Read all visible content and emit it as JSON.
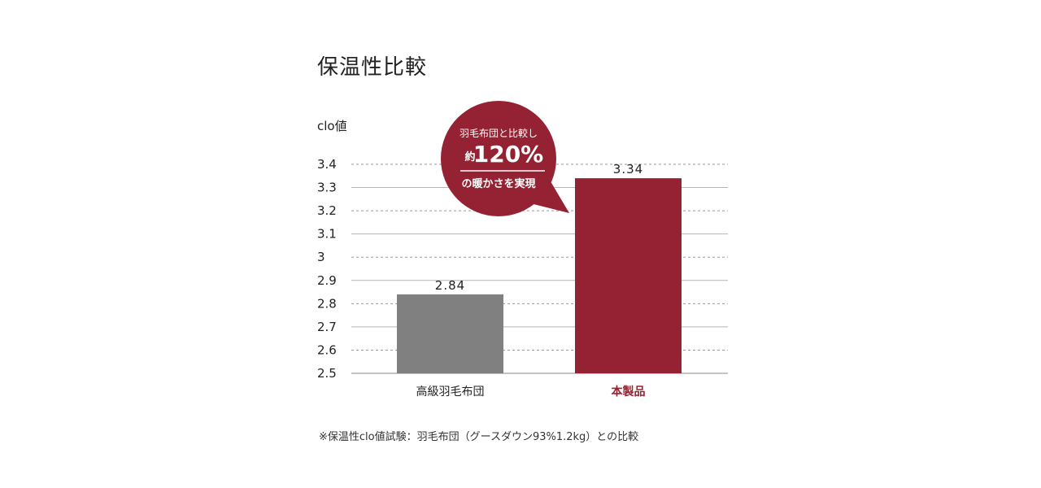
{
  "colors": {
    "accent": "#952232",
    "gray_bar": "#808080",
    "text": "#222222",
    "grid_dashed": "#9a9a9a",
    "grid_solid": "#b5b5b5"
  },
  "chart_data": {
    "type": "bar",
    "title": "保温性比較",
    "ylabel": "clo値",
    "xlabel": "",
    "ylim": [
      2.5,
      3.4
    ],
    "yticks": [
      {
        "value": 2.5,
        "label": "2.5"
      },
      {
        "value": 2.6,
        "label": "2.6"
      },
      {
        "value": 2.7,
        "label": "2.7"
      },
      {
        "value": 2.8,
        "label": "2.8"
      },
      {
        "value": 2.9,
        "label": "2.9"
      },
      {
        "value": 3.0,
        "label": "3"
      },
      {
        "value": 3.1,
        "label": "3.1"
      },
      {
        "value": 3.2,
        "label": "3.2"
      },
      {
        "value": 3.3,
        "label": "3.3"
      },
      {
        "value": 3.4,
        "label": "3.4"
      }
    ],
    "grid": true,
    "legend": "none",
    "categories": [
      "高級羽毛布団",
      "本製品"
    ],
    "values": [
      2.84,
      3.34
    ],
    "value_labels": [
      "2.84",
      "3.34"
    ],
    "bar_colors": [
      "#808080",
      "#952232"
    ],
    "highlight_category": "本製品",
    "annotation": {
      "line1": "羽毛布団と比較し",
      "prefix": "約",
      "value": "120%",
      "line3": "の暖かさを実現"
    },
    "footnote": "※保温性clo値試験：羽毛布団（グースダウン93%1.2kg）との比較"
  }
}
